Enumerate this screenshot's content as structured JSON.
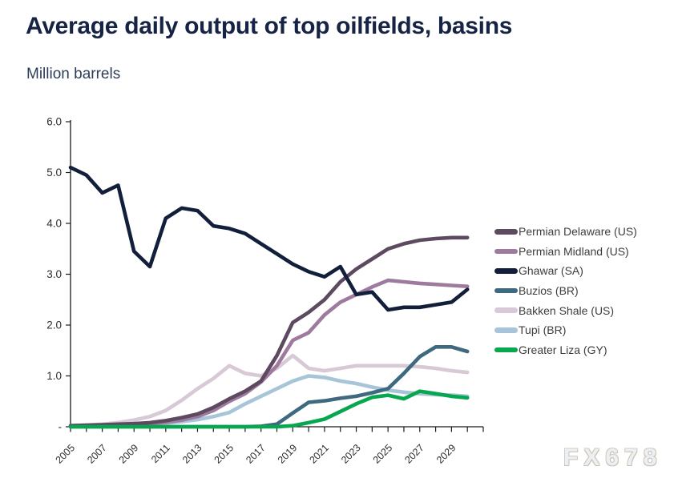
{
  "header": {
    "title": "Average daily output of top oilfields, basins",
    "subtitle": "Million barrels"
  },
  "watermark": "FX678",
  "chart_data": {
    "type": "line",
    "title": "Average daily output of top oilfields, basins",
    "ylabel": "Million barrels",
    "ylim": [
      0,
      6
    ],
    "grid": false,
    "legend_position": "right",
    "x": [
      2005,
      2006,
      2007,
      2008,
      2009,
      2010,
      2011,
      2012,
      2013,
      2014,
      2015,
      2016,
      2017,
      2018,
      2019,
      2020,
      2021,
      2022,
      2023,
      2024,
      2025,
      2026,
      2027,
      2028,
      2029,
      2030
    ],
    "x_tick_labels": [
      "2005",
      "2007",
      "2009",
      "2011",
      "2013",
      "2015",
      "2017",
      "2019",
      "2021",
      "2023",
      "2025",
      "2027",
      "2029"
    ],
    "y_ticks": [
      {
        "value": 6,
        "label": "6.0"
      },
      {
        "value": 5,
        "label": "5.0"
      },
      {
        "value": 4,
        "label": "4.0"
      },
      {
        "value": 3,
        "label": "3.0"
      },
      {
        "value": 2,
        "label": "2.0"
      },
      {
        "value": 1,
        "label": "1.0"
      },
      {
        "value": 0,
        "label": "-"
      }
    ],
    "series": [
      {
        "name": "Permian Delaware (US)",
        "color": "#5d4a61",
        "values": [
          0.02,
          0.03,
          0.04,
          0.05,
          0.06,
          0.08,
          0.12,
          0.18,
          0.25,
          0.38,
          0.55,
          0.7,
          0.9,
          1.4,
          2.05,
          2.25,
          2.5,
          2.85,
          3.1,
          3.3,
          3.5,
          3.6,
          3.67,
          3.7,
          3.72,
          3.72
        ]
      },
      {
        "name": "Permian Midland (US)",
        "color": "#9e7a9e",
        "values": [
          0.01,
          0.02,
          0.03,
          0.04,
          0.05,
          0.06,
          0.09,
          0.13,
          0.2,
          0.32,
          0.5,
          0.65,
          0.88,
          1.2,
          1.7,
          1.85,
          2.2,
          2.45,
          2.6,
          2.75,
          2.88,
          2.85,
          2.82,
          2.8,
          2.78,
          2.76
        ]
      },
      {
        "name": "Ghawar (SA)",
        "color": "#121f3b",
        "values": [
          5.1,
          4.95,
          4.6,
          4.75,
          3.45,
          3.15,
          4.1,
          4.3,
          4.25,
          3.95,
          3.9,
          3.8,
          3.6,
          3.4,
          3.2,
          3.05,
          2.95,
          3.15,
          2.6,
          2.65,
          2.3,
          2.35,
          2.35,
          2.4,
          2.45,
          2.7
        ]
      },
      {
        "name": "Buzios (BR)",
        "color": "#3f697f",
        "values": [
          0,
          0,
          0,
          0,
          0,
          0,
          0,
          0,
          0,
          0,
          0,
          0,
          0.01,
          0.05,
          0.27,
          0.48,
          0.51,
          0.56,
          0.6,
          0.67,
          0.75,
          1.05,
          1.38,
          1.57,
          1.57,
          1.48
        ]
      },
      {
        "name": "Bakken Shale (US)",
        "color": "#d8c9d6",
        "values": [
          0.02,
          0.03,
          0.05,
          0.08,
          0.13,
          0.2,
          0.32,
          0.52,
          0.75,
          0.95,
          1.2,
          1.05,
          1.0,
          1.15,
          1.4,
          1.15,
          1.1,
          1.15,
          1.2,
          1.2,
          1.2,
          1.2,
          1.18,
          1.15,
          1.1,
          1.07
        ]
      },
      {
        "name": "Tupi (BR)",
        "color": "#a7c5d8",
        "values": [
          0.01,
          0.01,
          0.02,
          0.02,
          0.03,
          0.05,
          0.07,
          0.1,
          0.14,
          0.2,
          0.28,
          0.45,
          0.6,
          0.75,
          0.9,
          1.0,
          0.97,
          0.9,
          0.85,
          0.78,
          0.72,
          0.68,
          0.65,
          0.63,
          0.62,
          0.6
        ]
      },
      {
        "name": "Greater Liza (GY)",
        "color": "#07a74f",
        "values": [
          0,
          0,
          0,
          0,
          0,
          0,
          0,
          0,
          0,
          0,
          0,
          0,
          0,
          0,
          0.02,
          0.08,
          0.15,
          0.3,
          0.45,
          0.58,
          0.62,
          0.55,
          0.7,
          0.65,
          0.6,
          0.57
        ]
      }
    ]
  }
}
